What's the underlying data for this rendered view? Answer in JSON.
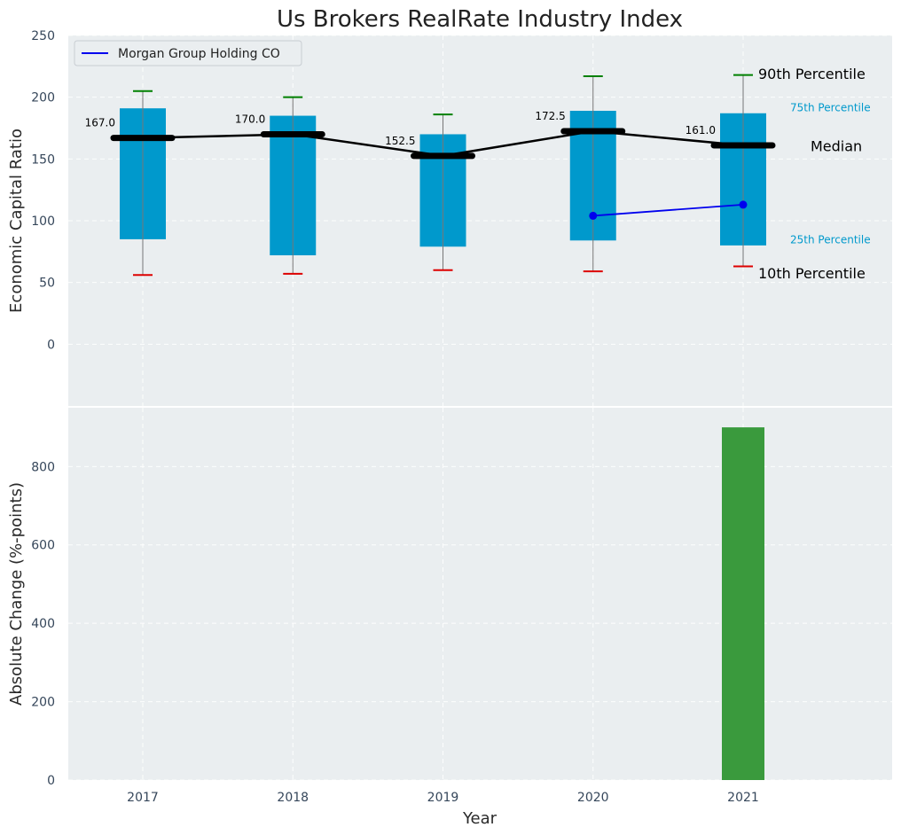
{
  "chart_data": [
    {
      "type": "box",
      "title": "Us Brokers RealRate Industry Index",
      "ylabel": "Economic Capital Ratio",
      "ylim": [
        -50,
        250
      ],
      "yticks": [
        0,
        50,
        100,
        150,
        200,
        250
      ],
      "categories": [
        "2017",
        "2018",
        "2019",
        "2020",
        "2021"
      ],
      "p10": [
        56,
        57,
        60,
        59,
        63
      ],
      "p25": [
        85,
        72,
        79,
        84,
        80
      ],
      "median": [
        167.0,
        170.0,
        152.5,
        172.5,
        161.0
      ],
      "median_labels": [
        "167.0",
        "170.0",
        "152.5",
        "172.5",
        "161.0"
      ],
      "p75": [
        191,
        185,
        170,
        189,
        187
      ],
      "p90": [
        205,
        200,
        186,
        217,
        218
      ],
      "series": [
        {
          "name": "Morgan Group Holding CO",
          "x": [
            "2020",
            "2021"
          ],
          "values": [
            104,
            113
          ]
        }
      ],
      "annotations": {
        "p90": "90th Percentile",
        "p75": "75th Percentile",
        "median": "Median",
        "p25": "25th Percentile",
        "p10": "10th Percentile"
      },
      "legend": "top-left",
      "grid": true,
      "colors": {
        "box": "#0099cc",
        "median_line": "#000000",
        "company": "#0000ee",
        "p90_cap": "#008000",
        "p10_cap": "#dd0000",
        "background": "#eaeef0",
        "quartile_text": "#0099cc"
      }
    },
    {
      "type": "bar",
      "ylabel": "Absolute Change (%-points)",
      "xlabel": "Year",
      "ylim": [
        0,
        950
      ],
      "yticks": [
        0,
        200,
        400,
        600,
        800
      ],
      "categories": [
        "2017",
        "2018",
        "2019",
        "2020",
        "2021"
      ],
      "values": [
        null,
        null,
        null,
        null,
        900
      ],
      "grid": true,
      "colors": {
        "bar": "#3a9a3d"
      }
    }
  ]
}
